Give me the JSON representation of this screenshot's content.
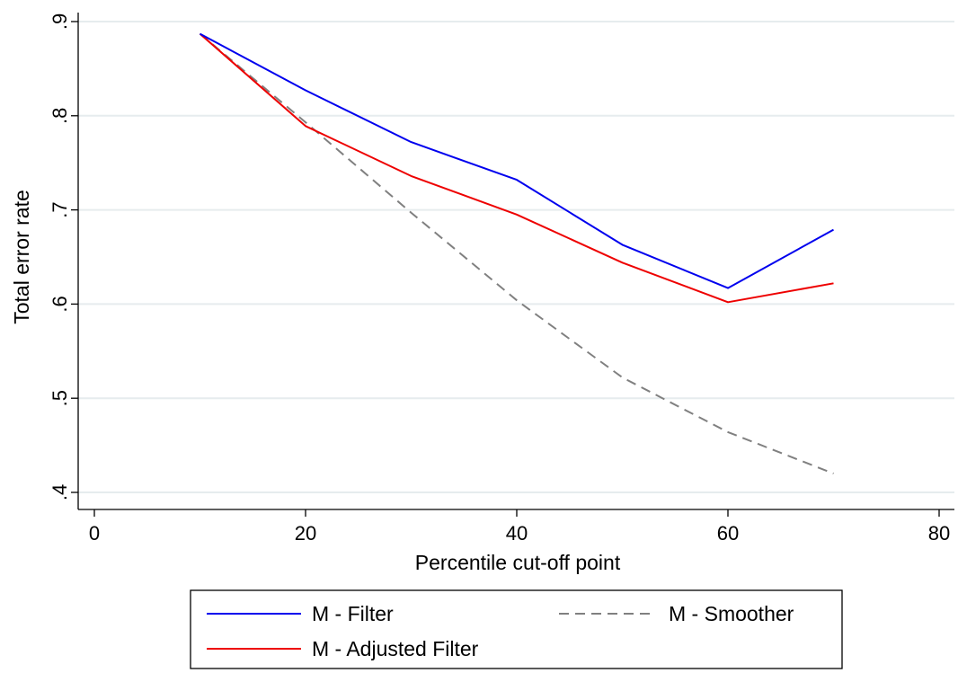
{
  "chart_data": {
    "type": "line",
    "title": "",
    "xlabel": "Percentile cut-off point",
    "ylabel": "Total error rate",
    "xlim": [
      0,
      80
    ],
    "ylim": [
      0.4,
      0.9
    ],
    "xticks": [
      0,
      20,
      40,
      60,
      80
    ],
    "xtick_labels": [
      "0",
      "20",
      "40",
      "60",
      "80"
    ],
    "yticks": [
      0.4,
      0.5,
      0.6,
      0.7,
      0.8,
      0.9
    ],
    "ytick_labels": [
      ".4",
      ".5",
      ".6",
      ".7",
      ".8",
      ".9"
    ],
    "grid": "horizontal",
    "legend_position": "bottom",
    "x": [
      10,
      20,
      30,
      40,
      50,
      60,
      70
    ],
    "series": [
      {
        "name": "M - Filter",
        "color": "#0000ee",
        "dash": "solid",
        "values": [
          0.887,
          0.827,
          0.772,
          0.732,
          0.663,
          0.617,
          0.679
        ]
      },
      {
        "name": "M - Adjusted Filter",
        "color": "#ee0000",
        "dash": "solid",
        "values": [
          0.887,
          0.789,
          0.736,
          0.695,
          0.644,
          0.602,
          0.622
        ]
      },
      {
        "name": "M - Smoother",
        "color": "#808080",
        "dash": "dashed",
        "values": [
          0.887,
          0.793,
          0.697,
          0.604,
          0.522,
          0.464,
          0.42
        ]
      }
    ]
  }
}
